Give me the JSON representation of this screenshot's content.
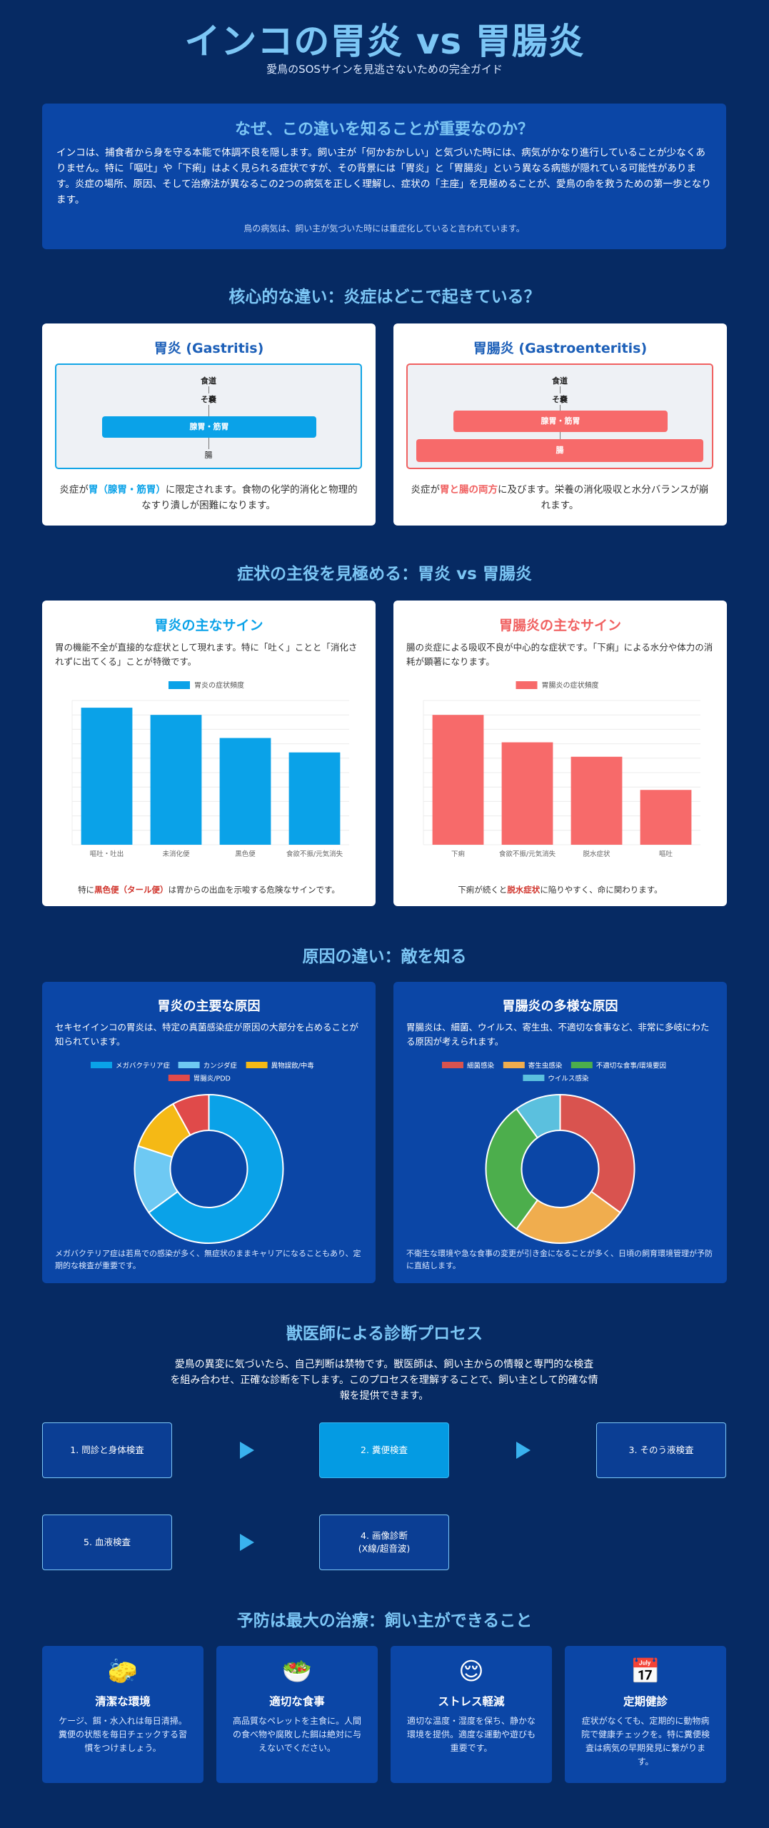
{
  "hero": {
    "title": "インコの胃炎 vs 胃腸炎",
    "subtitle": "愛鳥のSOSサインを見逃さないための完全ガイド"
  },
  "intro": {
    "heading": "なぜ、この違いを知ることが重要なのか？",
    "body": "インコは、捕食者から身を守る本能で体調不良を隠します。飼い主が「何かおかしい」と気づいた時には、病気がかなり進行していることが少なくありません。特に「嘔吐」や「下痢」はよく見られる症状ですが、その背景には「胃炎」と「胃腸炎」という異なる病態が隠れている可能性があります。炎症の場所、原因、そして治療法が異なるこの2つの病気を正しく理解し、症状の「主座」を見極めることが、愛鳥の命を救うための第一歩となります。",
    "note": "鳥の病気は、飼い主が気づいた時には重症化していると言われています。"
  },
  "section_location": {
    "title": "核心的な違い：炎症はどこで起きている？",
    "gastritis": {
      "heading": "胃炎 (Gastritis)",
      "labels": [
        "食道",
        "そ嚢",
        "腺胃・筋胃",
        "腸"
      ],
      "desc_pre": "炎症が",
      "desc_hl": "胃（腺胃・筋胃）",
      "desc_post": "に限定されます。食物の化学的消化と物理的なすり潰しが困難になります。"
    },
    "gastroenteritis": {
      "heading": "胃腸炎 (Gastroenteritis)",
      "labels": [
        "食道",
        "そ嚢",
        "腺胃・筋胃",
        "腸"
      ],
      "desc_pre": "炎症が",
      "desc_hl": "胃と腸の両方",
      "desc_post": "に及びます。栄養の消化吸収と水分バランスが崩れます。"
    }
  },
  "section_symptoms": {
    "title": "症状の主役を見極める：胃炎 vs 胃腸炎",
    "gastritis": {
      "heading": "胃炎の主なサイン",
      "desc": "胃の機能不全が直接的な症状として現れます。特に「吐く」ことと「消化されずに出てくる」ことが特徴です。",
      "foot_pre": "特に",
      "foot_hl": "黒色便（タール便）",
      "foot_post": "は胃からの出血を示唆する危険なサインです。"
    },
    "gastroenteritis": {
      "heading": "胃腸炎の主なサイン",
      "desc": "腸の炎症による吸収不良が中心的な症状です。「下痢」による水分や体力の消耗が顕著になります。",
      "foot_pre": "下痢が続くと",
      "foot_hl": "脱水症状",
      "foot_post": "に陥りやすく、命に関わります。"
    }
  },
  "section_causes": {
    "title": "原因の違い：敵を知る",
    "gastritis": {
      "heading": "胃炎の主要な原因",
      "desc": "セキセイインコの胃炎は、特定の真菌感染症が原因の大部分を占めることが知られています。",
      "foot": "メガバクテリア症は若鳥での感染が多く、無症状のままキャリアになることもあり、定期的な検査が重要です。"
    },
    "gastroenteritis": {
      "heading": "胃腸炎の多様な原因",
      "desc": "胃腸炎は、細菌、ウイルス、寄生虫、不適切な食事など、非常に多岐にわたる原因が考えられます。",
      "foot": "不衛生な環境や急な食事の変更が引き金になることが多く、日頃の飼育環境管理が予防に直結します。"
    }
  },
  "section_process": {
    "title": "獣医師による診断プロセス",
    "desc": "愛鳥の異変に気づいたら、自己判断は禁物です。獣医師は、飼い主からの情報と専門的な検査を組み合わせ、正確な診断を下します。このプロセスを理解することで、飼い主として的確な情報を提供できます。",
    "steps": [
      "1. 問診と身体検査",
      "2. 糞便検査",
      "3. そのう液検査",
      "5. 血液検査",
      "4. 画像診断\n(X線/超音波)"
    ]
  },
  "section_prevention": {
    "title": "予防は最大の治療：飼い主ができること",
    "cards": [
      {
        "icon": "🧽",
        "heading": "清潔な環境",
        "text": "ケージ、餌・水入れは毎日清掃。糞便の状態を毎日チェックする習慣をつけましょう。"
      },
      {
        "icon": "🥗",
        "heading": "適切な食事",
        "text": "高品質なペレットを主食に。人間の食べ物や腐敗した餌は絶対に与えないでください。"
      },
      {
        "icon": "😌",
        "heading": "ストレス軽減",
        "text": "適切な温度・湿度を保ち、静かな環境を提供。適度な運動や遊びも重要です。"
      },
      {
        "icon": "📅",
        "heading": "定期健診",
        "text": "症状がなくても、定期的に動物病院で健康チェックを。特に糞便検査は病気の早期発見に繋がります。"
      }
    ]
  },
  "colors": {
    "blue": "#0aa2e8",
    "red": "#f76a6a",
    "title": "#7cc6f5"
  },
  "chart_data": [
    {
      "type": "bar",
      "legend": "胃炎の症状頻度",
      "categories": [
        "嘔吐・吐出",
        "未消化便",
        "黒色便",
        "食欲不振/元気消失"
      ],
      "values": [
        95,
        90,
        74,
        64
      ],
      "ylim": [
        0,
        100
      ],
      "color": "#0aa2e8"
    },
    {
      "type": "bar",
      "legend": "胃腸炎の症状頻度",
      "categories": [
        "下痢",
        "食欲不振/元気消失",
        "脱水症状",
        "嘔吐"
      ],
      "values": [
        90,
        71,
        61,
        38
      ],
      "ylim": [
        0,
        100
      ],
      "color": "#f76a6a"
    },
    {
      "type": "pie",
      "legend": [
        "メガバクテリア症",
        "カンジダ症",
        "異物誤飲/中毒",
        "胃腸炎/PDD"
      ],
      "values": [
        65,
        15,
        12,
        8
      ],
      "colors": [
        "#0aa2e8",
        "#6ec9f3",
        "#f5b915",
        "#e04a4a"
      ]
    },
    {
      "type": "pie",
      "legend": [
        "細菌感染",
        "寄生虫感染",
        "不適切な食事/環境要因",
        "ウイルス感染"
      ],
      "values": [
        35,
        25,
        30,
        10
      ],
      "colors": [
        "#d9534f",
        "#f0ad4e",
        "#4cae4c",
        "#5bc0de"
      ]
    }
  ]
}
